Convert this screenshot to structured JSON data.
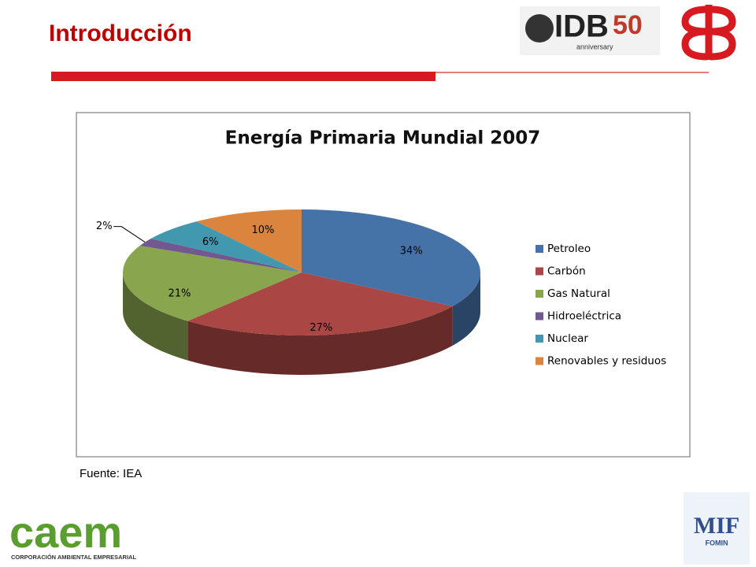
{
  "header": {
    "title": "Introducción"
  },
  "logos": {
    "idb": "IDB",
    "idb_fifty": "50",
    "idb_tagline": "anniversary",
    "caem": "caem",
    "caem_tagline": "CORPORACIÓN AMBIENTAL EMPRESARIAL",
    "mif": "MIF",
    "fomin": "FOMIN"
  },
  "source": "Fuente: IEA",
  "chart_data": {
    "type": "pie3d",
    "title": "Energía Primaria Mundial 2007",
    "categories": [
      "Petroleo",
      "Carbón",
      "Gas Natural",
      "Hidroeléctrica",
      "Nuclear",
      "Renovables y residuos"
    ],
    "values": [
      34,
      27,
      21,
      2,
      6,
      10
    ],
    "value_labels": [
      "34%",
      "27%",
      "21%",
      "2%",
      "6%",
      "10%"
    ],
    "colors": [
      "#4572a7",
      "#aa4643",
      "#89a54e",
      "#71588f",
      "#4198af",
      "#db843d"
    ],
    "legend": "right"
  }
}
